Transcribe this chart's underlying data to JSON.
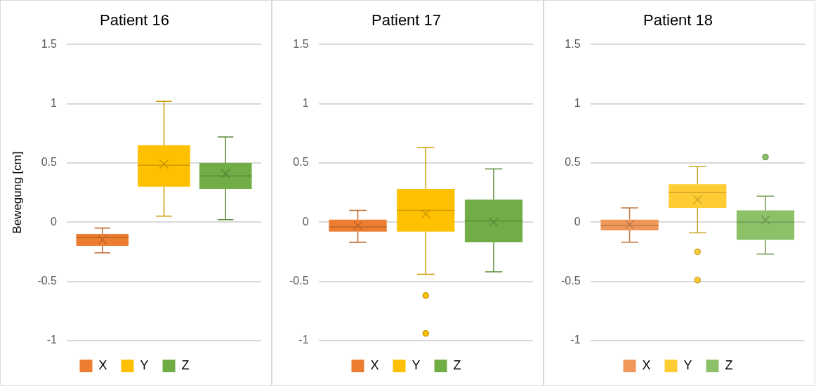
{
  "chart_data": [
    {
      "type": "box",
      "title": "Patient 16",
      "ylabel": "Bewegung [cm]",
      "categories": [
        null
      ],
      "ylim": [
        -1,
        1.5
      ],
      "yticks": [
        -1,
        -0.5,
        0,
        0.5,
        1,
        1.5
      ],
      "grid": "y",
      "legend": "bottom",
      "series": [
        {
          "name": "X",
          "color": "#ed7d31",
          "boxes": [
            {
              "low": -0.26,
              "q1": -0.2,
              "median": -0.13,
              "q3": -0.1,
              "high": -0.05,
              "mean": -0.15
            }
          ]
        },
        {
          "name": "Y",
          "color": "#ffc000",
          "boxes": [
            {
              "low": 0.05,
              "q1": 0.3,
              "median": 0.48,
              "q3": 0.65,
              "high": 1.02,
              "mean": 0.49
            }
          ]
        },
        {
          "name": "Z",
          "color": "#70ad47",
          "boxes": [
            {
              "low": 0.02,
              "q1": 0.28,
              "median": 0.39,
              "q3": 0.5,
              "high": 0.72,
              "mean": 0.41
            }
          ]
        }
      ]
    },
    {
      "type": "box",
      "title": "Patient 17",
      "categories": [
        null
      ],
      "ylim": [
        -1,
        1.5
      ],
      "yticks": [
        -1,
        -0.5,
        0,
        0.5,
        1,
        1.5
      ],
      "grid": "y",
      "legend": "bottom",
      "series": [
        {
          "name": "X",
          "color": "#ed7d31",
          "boxes": [
            {
              "low": -0.17,
              "q1": -0.08,
              "median": -0.04,
              "q3": 0.02,
              "high": 0.1,
              "mean": -0.03
            }
          ]
        },
        {
          "name": "Y",
          "color": "#ffc000",
          "boxes": [
            {
              "low": -0.44,
              "q1": -0.08,
              "median": 0.1,
              "q3": 0.28,
              "high": 0.63,
              "mean": 0.07,
              "outliers": [
                -0.62,
                -0.94
              ]
            }
          ]
        },
        {
          "name": "Z",
          "color": "#70ad47",
          "boxes": [
            {
              "low": -0.42,
              "q1": -0.17,
              "median": 0.01,
              "q3": 0.19,
              "high": 0.45,
              "mean": 0.0
            }
          ]
        }
      ]
    },
    {
      "type": "box",
      "title": "Patient 18",
      "categories": [
        null
      ],
      "ylim": [
        -1,
        1.5
      ],
      "yticks": [
        -1,
        -0.5,
        0,
        0.5,
        1,
        1.5
      ],
      "grid": "y",
      "legend": "bottom",
      "series": [
        {
          "name": "X",
          "color": "#f0975a",
          "boxes": [
            {
              "low": -0.17,
              "q1": -0.07,
              "median": -0.03,
              "q3": 0.02,
              "high": 0.12,
              "mean": -0.02
            }
          ]
        },
        {
          "name": "Y",
          "color": "#ffcd33",
          "boxes": [
            {
              "low": -0.09,
              "q1": 0.12,
              "median": 0.25,
              "q3": 0.32,
              "high": 0.47,
              "mean": 0.19,
              "outliers": [
                -0.25,
                -0.49
              ]
            }
          ]
        },
        {
          "name": "Z",
          "color": "#8cc168",
          "boxes": [
            {
              "low": -0.27,
              "q1": -0.15,
              "median": 0.0,
              "q3": 0.1,
              "high": 0.22,
              "mean": 0.02,
              "outliers": [
                0.55
              ]
            }
          ]
        }
      ]
    }
  ]
}
